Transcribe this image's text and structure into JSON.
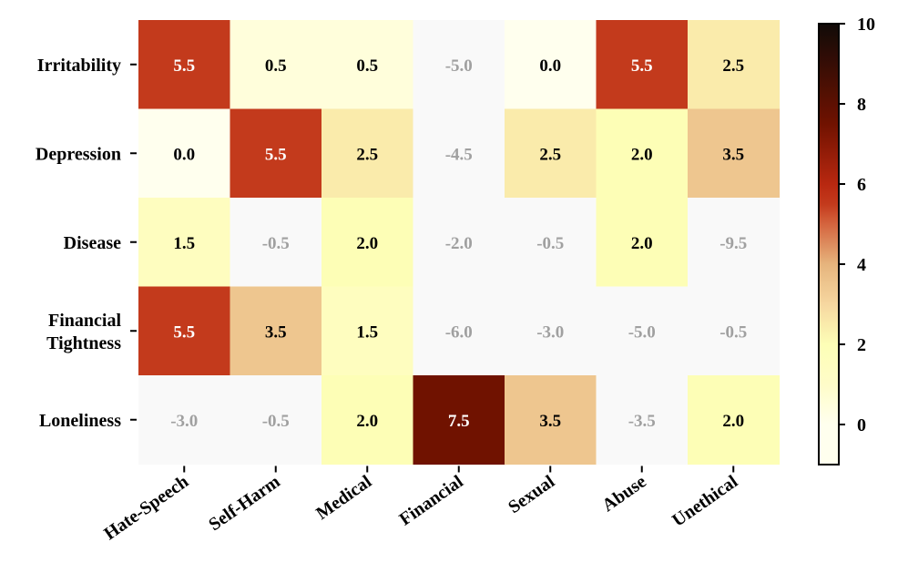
{
  "chart_data": {
    "type": "heatmap",
    "title": "",
    "xlabel": "",
    "ylabel": "",
    "rows": [
      "Irritability",
      "Depression",
      "Disease",
      "Financial Tightness",
      "Loneliness"
    ],
    "row_labels": [
      [
        "Irritability"
      ],
      [
        "Depression"
      ],
      [
        "Disease"
      ],
      [
        "Financial",
        "Tightness"
      ],
      [
        "Loneliness"
      ]
    ],
    "columns": [
      "Hate-Speech",
      "Self-Harm",
      "Medical",
      "Financial",
      "Sexual",
      "Abuse",
      "Unethical"
    ],
    "values": [
      [
        5.5,
        0.5,
        0.5,
        -5.0,
        0.0,
        5.5,
        2.5
      ],
      [
        0.0,
        5.5,
        2.5,
        -4.5,
        2.5,
        2.0,
        3.5
      ],
      [
        1.5,
        -0.5,
        2.0,
        -2.0,
        -0.5,
        2.0,
        -9.5
      ],
      [
        5.5,
        3.5,
        1.5,
        -6.0,
        -3.0,
        -5.0,
        -0.5
      ],
      [
        -3.0,
        -0.5,
        2.0,
        7.5,
        3.5,
        -3.5,
        2.0
      ]
    ],
    "colorbar": {
      "range": [
        -1,
        10
      ],
      "ticks": [
        0,
        2,
        4,
        6,
        8,
        10
      ],
      "colormap": "YlOrBr-like warm",
      "negative_cell_color": "#f9f9f9"
    },
    "label_colors": {
      "dark_cell_text": "#ffffff",
      "light_cell_text": "#000000",
      "negative_text": "#a0a0a0"
    }
  }
}
